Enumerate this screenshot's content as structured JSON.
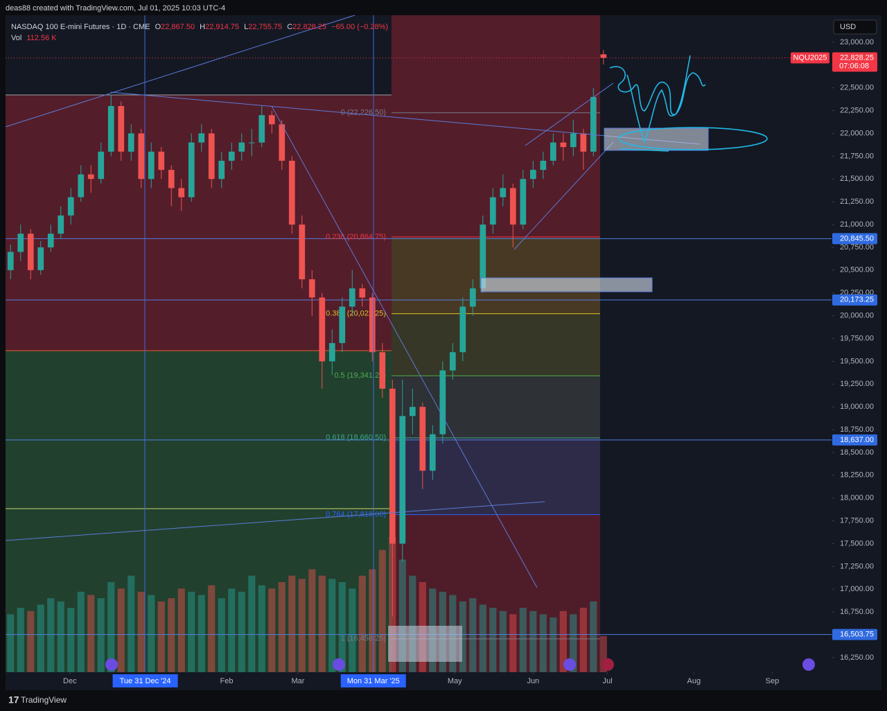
{
  "header": "deas88 created with TradingView.com, Jul 01, 2025 10:03 UTC-4",
  "footer": "TradingView",
  "chart_data": {
    "type": "candlestick",
    "legend": {
      "symbol": "NASDAQ 100 E-mini Futures · 1D · CME",
      "o_key": "O",
      "o": "22,867.50",
      "h_key": "H",
      "h": "22,914.75",
      "l_key": "L",
      "l": "22,755.75",
      "c_key": "C",
      "c": "22,828.25",
      "change": "−65.00 (−0.28%)",
      "vol_key": "Vol",
      "vol": "112.56 K"
    },
    "currency": "USD",
    "open": [
      20500,
      20700,
      20900,
      20500,
      20750,
      20900,
      21100,
      21300,
      21550,
      21500,
      21800,
      22300,
      21800,
      22000,
      21500,
      21800,
      21600,
      21400,
      21300,
      21900,
      22000,
      21500,
      21700,
      21800,
      21900,
      21900,
      22200,
      22100,
      21700,
      21000,
      20400,
      20200,
      19500,
      19700,
      20100,
      20300,
      20200,
      19600,
      19200,
      17500,
      18900,
      19000,
      18300,
      18700,
      19400,
      19600,
      20100,
      20300,
      21000,
      21300,
      21400,
      21000,
      21500,
      21600,
      21700,
      21900,
      21850,
      22000,
      21800,
      22867.5
    ],
    "high": [
      20780,
      21000,
      20950,
      20820,
      21000,
      21200,
      21400,
      21650,
      21650,
      21900,
      22425,
      22350,
      22100,
      22050,
      21900,
      21850,
      21650,
      21500,
      22000,
      22100,
      22050,
      21800,
      21900,
      22000,
      22050,
      22300,
      22250,
      22150,
      21750,
      21100,
      20500,
      20250,
      19850,
      20200,
      20500,
      20350,
      20250,
      19700,
      19300,
      19300,
      19200,
      19050,
      18800,
      19500,
      19700,
      20200,
      20400,
      21100,
      21400,
      21550,
      21450,
      21600,
      21700,
      21800,
      22000,
      22000,
      22150,
      22050,
      22500,
      22914.75
    ],
    "low": [
      20400,
      20600,
      20400,
      20450,
      20700,
      20850,
      21000,
      21250,
      21350,
      21450,
      21750,
      21700,
      21700,
      21400,
      21400,
      21500,
      21200,
      21150,
      21250,
      21800,
      21400,
      21400,
      21600,
      21700,
      21750,
      21850,
      22000,
      21600,
      20900,
      20300,
      20000,
      19200,
      19350,
      19600,
      20000,
      20100,
      19500,
      19100,
      16700,
      17300,
      18700,
      18100,
      18200,
      18600,
      19300,
      19500,
      20000,
      20250,
      20900,
      21200,
      20750,
      20950,
      21400,
      21500,
      21650,
      21700,
      21750,
      21600,
      21750,
      22755.75
    ],
    "close": [
      20700,
      20900,
      20500,
      20750,
      20900,
      21100,
      21300,
      21550,
      21500,
      21800,
      22300,
      21800,
      22000,
      21500,
      21800,
      21600,
      21400,
      21300,
      21900,
      22000,
      21500,
      21700,
      21800,
      21900,
      21900,
      22200,
      22100,
      21700,
      21000,
      20400,
      20200,
      19500,
      19700,
      20100,
      20300,
      20200,
      19600,
      19200,
      17500,
      18900,
      19000,
      18300,
      18700,
      19400,
      19600,
      20100,
      20300,
      21000,
      21300,
      21400,
      21000,
      21500,
      21600,
      21700,
      21900,
      21850,
      22000,
      21800,
      22400,
      22828.25
    ],
    "volume": [
      180,
      200,
      190,
      210,
      230,
      220,
      200,
      250,
      240,
      230,
      280,
      260,
      300,
      250,
      240,
      220,
      230,
      260,
      250,
      240,
      270,
      230,
      260,
      250,
      300,
      270,
      260,
      280,
      300,
      290,
      320,
      300,
      290,
      280,
      260,
      300,
      320,
      380,
      420,
      350,
      300,
      280,
      260,
      250,
      240,
      220,
      230,
      210,
      200,
      190,
      180,
      200,
      190,
      180,
      170,
      190,
      180,
      200,
      220,
      112.56
    ],
    "up_color": "#26a69a",
    "down_color": "#ef5350",
    "xlim": [
      0,
      82.2
    ],
    "xticks": [
      {
        "value": 6.4,
        "label": "Dec"
      },
      {
        "value": 22,
        "label": "Feb"
      },
      {
        "value": 29.1,
        "label": "Mar"
      },
      {
        "value": 44.7,
        "label": "May"
      },
      {
        "value": 52.5,
        "label": "Jun"
      },
      {
        "value": 59.9,
        "label": "Jul"
      },
      {
        "value": 68.5,
        "label": "Aug"
      },
      {
        "value": 76.3,
        "label": "Sep"
      }
    ],
    "date_markers": [
      {
        "value": 13.9,
        "label": "Tue 31 Dec '24"
      },
      {
        "value": 36.6,
        "label": "Mon 31 Mar '25"
      }
    ],
    "ylim": [
      16090,
      23296
    ],
    "yticks": [
      {
        "value": 16250,
        "label": "16,250.00"
      },
      {
        "value": 16500,
        "label": "16,500.00"
      },
      {
        "value": 16750,
        "label": "16,750.00"
      },
      {
        "value": 17000,
        "label": "17,000.00"
      },
      {
        "value": 17250,
        "label": "17,250.00"
      },
      {
        "value": 17500,
        "label": "17,500.00"
      },
      {
        "value": 17750,
        "label": "17,750.00"
      },
      {
        "value": 18000,
        "label": "18,000.00"
      },
      {
        "value": 18250,
        "label": "18,250.00"
      },
      {
        "value": 18500,
        "label": "18,500.00"
      },
      {
        "value": 18750,
        "label": "18,750.00"
      },
      {
        "value": 19000,
        "label": "19,000.00"
      },
      {
        "value": 19250,
        "label": "19,250.00"
      },
      {
        "value": 19500,
        "label": "19,500.00"
      },
      {
        "value": 19750,
        "label": "19,750.00"
      },
      {
        "value": 20000,
        "label": "20,000.00"
      },
      {
        "value": 20250,
        "label": "20,250.00"
      },
      {
        "value": 20500,
        "label": "20,500.00"
      },
      {
        "value": 20750,
        "label": "20,750.00"
      },
      {
        "value": 21000,
        "label": "21,000.00"
      },
      {
        "value": 21250,
        "label": "21,250.00"
      },
      {
        "value": 21500,
        "label": "21,500.00"
      },
      {
        "value": 21750,
        "label": "21,750.00"
      },
      {
        "value": 22000,
        "label": "22,000.00"
      },
      {
        "value": 22250,
        "label": "22,250.00"
      },
      {
        "value": 22500,
        "label": "22,500.00"
      },
      {
        "value": 22750,
        "label": "22,750.00"
      },
      {
        "value": 23000,
        "label": "23,000.00"
      }
    ],
    "price_lines": [
      {
        "value": 20845.5,
        "label": "20,845.50"
      },
      {
        "value": 20173.25,
        "label": "20,173.25"
      },
      {
        "value": 18637,
        "label": "18,637.00"
      },
      {
        "value": 16503.75,
        "label": "16,503.75"
      }
    ],
    "fib_levels": [
      {
        "value": 22226.5,
        "label": "0 (22,226.50)",
        "color": "#787b86"
      },
      {
        "value": 20864.75,
        "label": "0.236 (20,864.75)",
        "color": "#f23645"
      },
      {
        "value": 20022.25,
        "label": "0.382 (20,022.25)",
        "color": "#d4c12a"
      },
      {
        "value": 19341.25,
        "label": "0.5 (19,341.25)",
        "color": "#4caf50"
      },
      {
        "value": 18660.5,
        "label": "0.618 (18,660.50)",
        "color": "#3ba889"
      },
      {
        "value": 17818,
        "label": "0.764 (17,818.00)",
        "color": "#2962ff"
      },
      {
        "value": 16456.25,
        "label": "1 (16,456.25)",
        "color": "#787b86"
      }
    ],
    "last_price": {
      "symbol": "NQU2025",
      "value": 22828.25,
      "label": "22,828.25",
      "countdown": "07:06:08"
    }
  }
}
